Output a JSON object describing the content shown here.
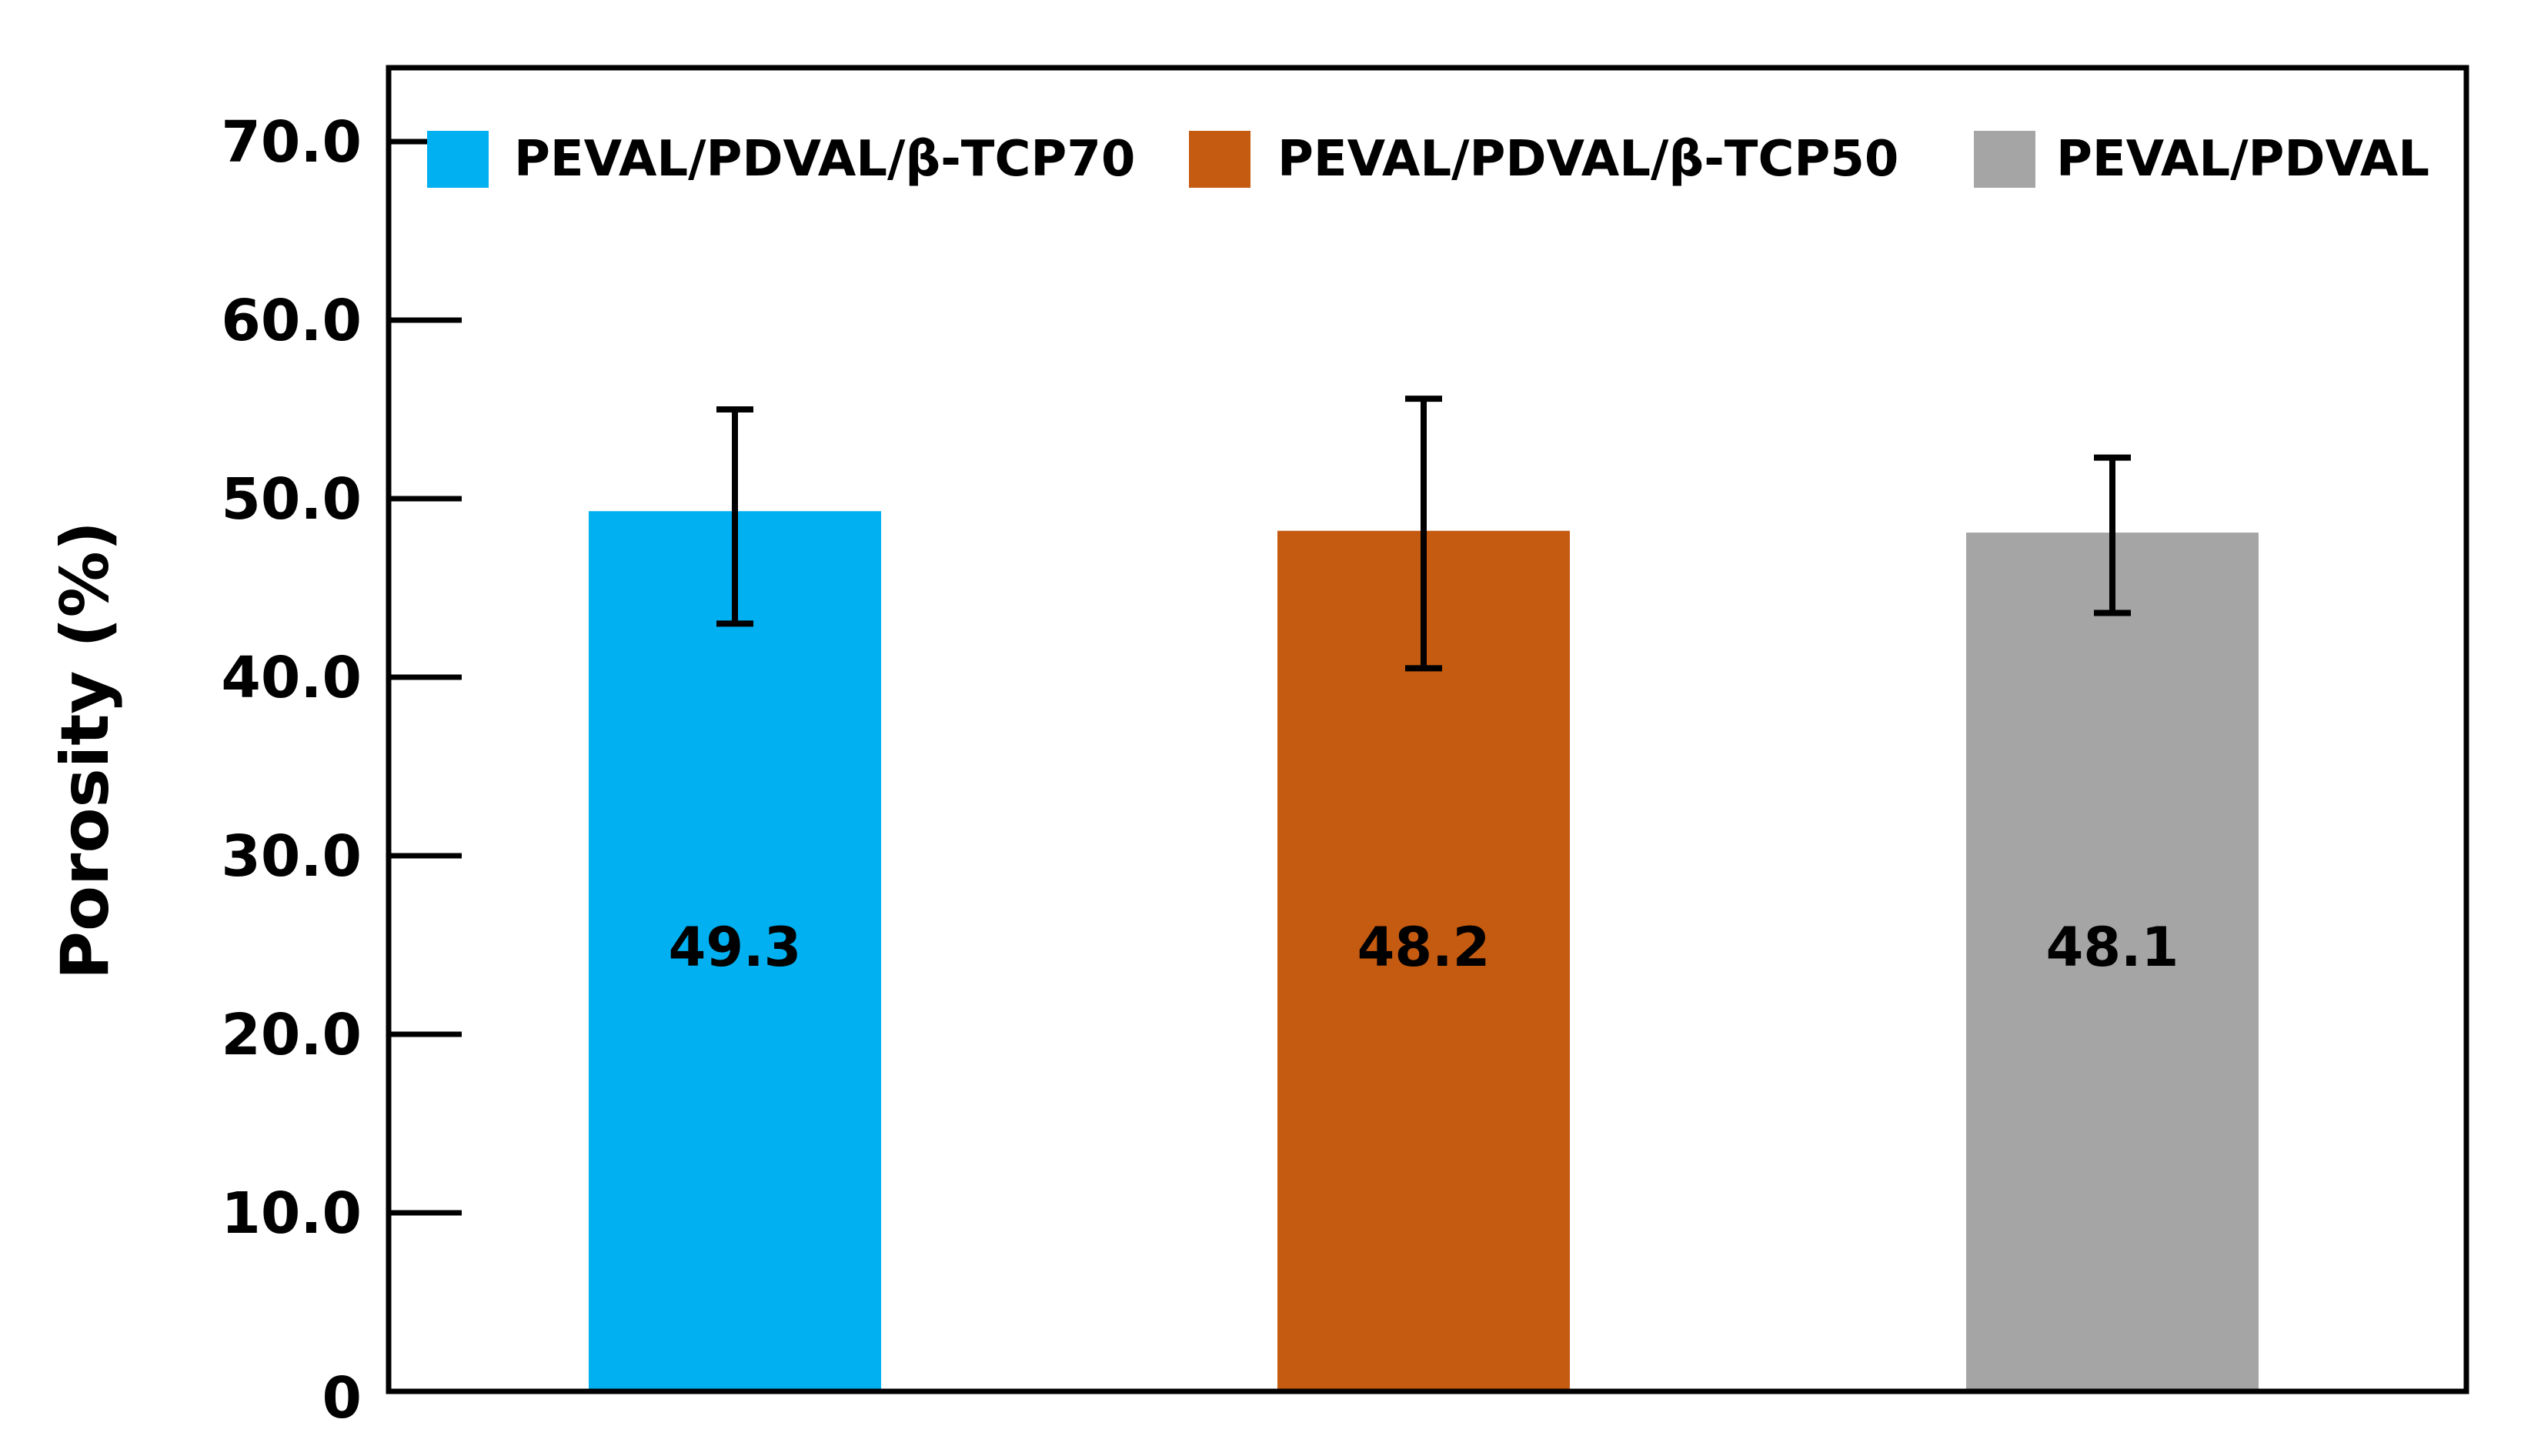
{
  "chart_data": {
    "type": "bar",
    "title": "",
    "xlabel": "",
    "ylabel": "Porosity (%)",
    "ylim": [
      0,
      74
    ],
    "yticks": [
      0,
      10,
      20,
      30,
      40,
      50,
      60,
      70
    ],
    "ytick_labels": [
      "0",
      "10.0",
      "20.0",
      "30.0",
      "40.0",
      "50.0",
      "60.0",
      "70.0"
    ],
    "grid": false,
    "legend_position": "top",
    "categories": [
      "PEVAL/PDVAL/β-TCP70",
      "PEVAL/PDVAL/β-TCP50",
      "PEVAL/PDVAL"
    ],
    "series": [
      {
        "name": "PEVAL/PDVAL/β-TCP70",
        "value": 49.3,
        "error_low": 43.0,
        "error_high": 55.0,
        "color": "#00b0f0",
        "label": "49.3"
      },
      {
        "name": "PEVAL/PDVAL/β-TCP50",
        "value": 48.2,
        "error_low": 40.5,
        "error_high": 55.6,
        "color": "#c55a11",
        "label": "48.2"
      },
      {
        "name": "PEVAL/PDVAL",
        "value": 48.1,
        "error_low": 43.6,
        "error_high": 52.3,
        "color": "#a5a5a5",
        "label": "48.1"
      }
    ]
  }
}
